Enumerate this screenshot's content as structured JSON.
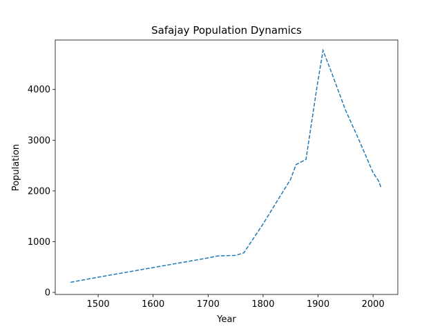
{
  "chart_data": {
    "type": "line",
    "title": "Safajay Population Dynamics",
    "xlabel": "Year",
    "ylabel": "Population",
    "xlim": [
      1422,
      2045
    ],
    "ylim": [
      -40,
      4975
    ],
    "xticks": [
      1500,
      1600,
      1700,
      1800,
      1900,
      2000
    ],
    "yticks": [
      0,
      1000,
      2000,
      3000,
      4000
    ],
    "grid": false,
    "legend": "none",
    "series": [
      {
        "color": "#1f77b4",
        "line_style": "dashed",
        "x": [
          1450,
          1500,
          1600,
          1700,
          1718,
          1750,
          1765,
          1800,
          1850,
          1860,
          1878,
          1898,
          1909,
          1925,
          1950,
          1975,
          2000,
          2010,
          2015
        ],
        "y": [
          200,
          300,
          490,
          680,
          720,
          730,
          780,
          1350,
          2230,
          2520,
          2620,
          4050,
          4770,
          4320,
          3590,
          2990,
          2360,
          2200,
          2050
        ]
      }
    ]
  }
}
